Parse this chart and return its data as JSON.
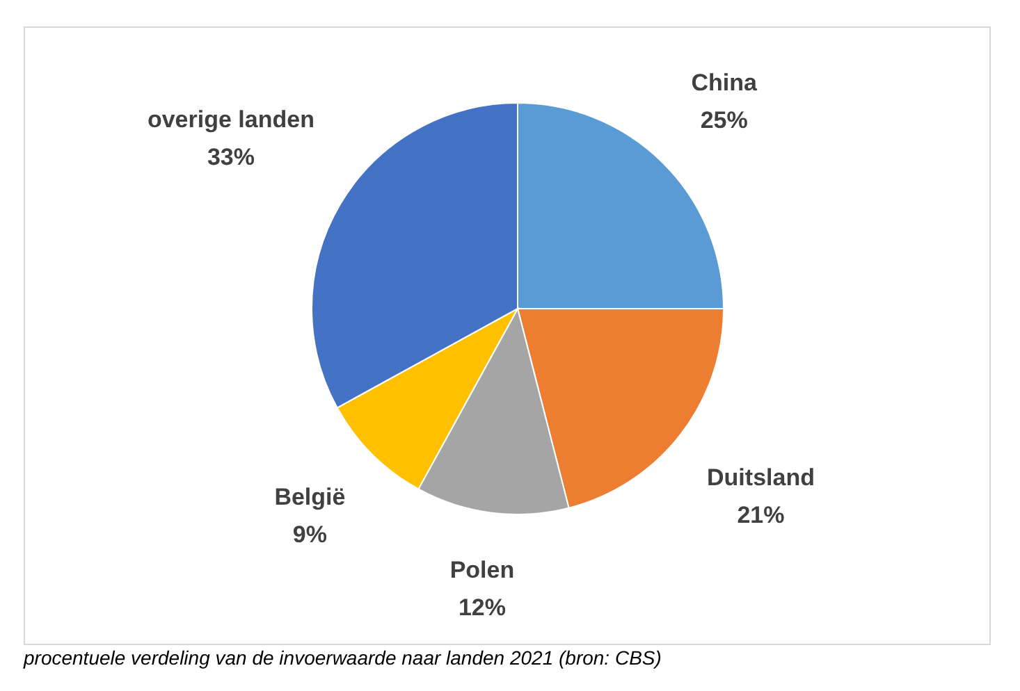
{
  "chart_data": {
    "type": "pie",
    "categories": [
      "China",
      "Duitsland",
      "Polen",
      "België",
      "overige landen"
    ],
    "values": [
      25,
      21,
      12,
      9,
      33
    ],
    "value_labels": [
      "25%",
      "21%",
      "12%",
      "9%",
      "33%"
    ],
    "colors": [
      "#5b9bd5",
      "#ed7d31",
      "#a5a5a5",
      "#ffc000",
      "#4472c4"
    ],
    "legend": false,
    "annotations": [
      "procentuele verdeling van de invoerwaarde naar landen 2021 (bron: CBS)"
    ]
  }
}
